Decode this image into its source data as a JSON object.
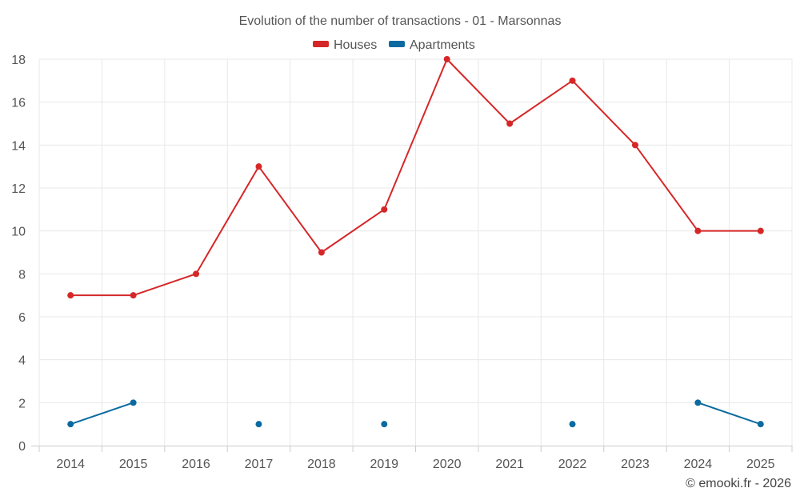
{
  "chart_data": {
    "type": "line",
    "title": "Evolution of the number of transactions - 01 - Marsonnas",
    "categories": [
      "2014",
      "2015",
      "2016",
      "2017",
      "2018",
      "2019",
      "2020",
      "2021",
      "2022",
      "2023",
      "2024",
      "2025"
    ],
    "ylim": [
      0,
      18
    ],
    "yticks": [
      0,
      2,
      4,
      6,
      8,
      10,
      12,
      14,
      16,
      18
    ],
    "grid": true,
    "legend_position": "top-center",
    "series": [
      {
        "name": "Houses",
        "color": "#d62728",
        "values": [
          7,
          7,
          8,
          13,
          9,
          11,
          18,
          15,
          17,
          14,
          10,
          10
        ]
      },
      {
        "name": "Apartments",
        "color": "#0b6aa0",
        "values": [
          1,
          2,
          null,
          1,
          null,
          1,
          null,
          null,
          1,
          null,
          2,
          1
        ]
      }
    ],
    "credit": "© emooki.fr - 2026"
  }
}
